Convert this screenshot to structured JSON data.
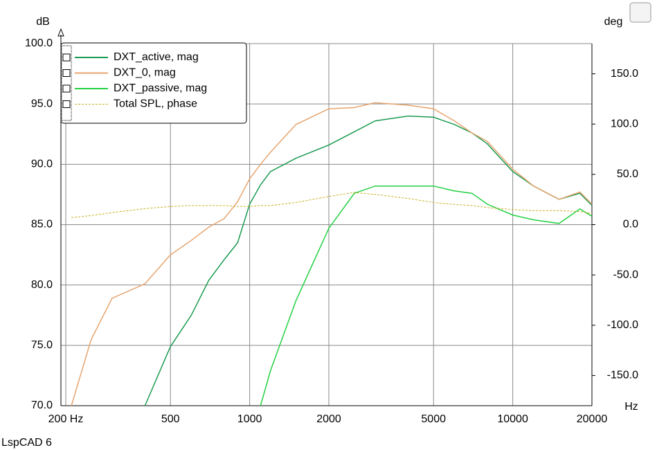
{
  "chart_data": {
    "type": "line",
    "y_unit": "dB",
    "y2_unit": "deg",
    "x_unit": "Hz",
    "app_label": "LspCAD 6",
    "x": [
      210,
      250,
      300,
      400,
      500,
      600,
      700,
      800,
      900,
      1000,
      1100,
      1200,
      1500,
      2000,
      2500,
      3000,
      4000,
      5000,
      6000,
      7000,
      8000,
      10000,
      12000,
      15000,
      18000,
      20000
    ],
    "xlim": [
      200,
      20000
    ],
    "xscale": "log",
    "xticks": [
      {
        "value": 200,
        "label": "200 Hz"
      },
      500,
      1000,
      2000,
      5000,
      10000,
      20000
    ],
    "ylim": [
      70,
      100
    ],
    "yticks": [
      {
        "value": 70,
        "label": "70.0"
      },
      {
        "value": 75,
        "label": "75.0"
      },
      {
        "value": 80,
        "label": "80.0"
      },
      {
        "value": 85,
        "label": "85.0"
      },
      {
        "value": 90,
        "label": "90.0"
      },
      {
        "value": 95,
        "label": "95.0"
      },
      {
        "value": 100,
        "label": "100.0"
      }
    ],
    "y2lim": [
      -180,
      180
    ],
    "y2ticks": [
      {
        "value": -150,
        "label": "-150.0"
      },
      {
        "value": -100,
        "label": "-100.0"
      },
      {
        "value": -50,
        "label": "-50.0"
      },
      {
        "value": 0,
        "label": "0.0"
      },
      {
        "value": 50,
        "label": "50.0"
      },
      {
        "value": 100,
        "label": "100.0"
      },
      {
        "value": 150,
        "label": "150.0"
      }
    ],
    "grid": true,
    "legend": "top-left",
    "series": [
      {
        "name": "DXT_active, mag",
        "color": "#1a9a50",
        "values": [
          null,
          null,
          null,
          70,
          74.9,
          77.5,
          80.4,
          82.1,
          83.5,
          86.7,
          88.3,
          89.4,
          90.5,
          91.6,
          92.7,
          93.6,
          94.0,
          93.9,
          93.3,
          92.6,
          91.7,
          89.4,
          88.2,
          87.1,
          87.6,
          86.6
        ]
      },
      {
        "name": "DXT_0, mag",
        "color": "#e6a46e",
        "values": [
          70,
          75.5,
          78.9,
          80.1,
          82.5,
          83.7,
          84.8,
          85.5,
          86.9,
          88.8,
          90.0,
          91.0,
          93.3,
          94.6,
          94.7,
          95.1,
          94.9,
          94.6,
          93.6,
          92.6,
          91.9,
          89.6,
          88.2,
          87.1,
          87.7,
          86.7
        ]
      },
      {
        "name": "DXT_passive, mag",
        "color": "#22d040",
        "values": [
          null,
          null,
          null,
          null,
          null,
          null,
          null,
          null,
          null,
          null,
          70,
          72.9,
          78.7,
          84.7,
          87.6,
          88.2,
          88.2,
          88.2,
          87.8,
          87.6,
          86.7,
          85.8,
          85.4,
          85.1,
          86.3,
          85.7
        ]
      },
      {
        "name": "Total SPL, phase",
        "color": "#c8b020",
        "dashed": true,
        "axis": "y2",
        "values": [
          7,
          9,
          12,
          16,
          18,
          19,
          19,
          19,
          18,
          18,
          19,
          19,
          22,
          28,
          32,
          30,
          26,
          22,
          20,
          19,
          17,
          15,
          14,
          14,
          13,
          11
        ]
      }
    ]
  }
}
